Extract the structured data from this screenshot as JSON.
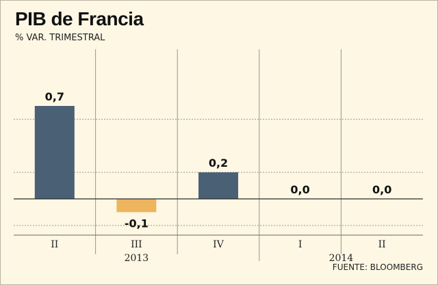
{
  "title": "PIB de Francia",
  "subtitle": "% VAR. TRIMESTRAL",
  "source": "FUENTE: BLOOMBERG",
  "colors": {
    "positive": "#4a6075",
    "negative": "#eeb55f",
    "background": "#fdf7e4"
  },
  "chart_data": {
    "type": "bar",
    "title": "PIB de Francia",
    "subtitle": "% VAR. TRIMESTRAL",
    "categories": [
      "II",
      "III",
      "IV",
      "I",
      "II"
    ],
    "years": [
      {
        "label": "2013",
        "span": [
          0,
          2
        ]
      },
      {
        "label": "2014",
        "span": [
          3,
          4
        ]
      }
    ],
    "values": [
      0.7,
      -0.1,
      0.2,
      0.0,
      0.0
    ],
    "value_labels": [
      "0,7",
      "-0,1",
      "0,2",
      "0,0",
      "0,0"
    ],
    "ylim": [
      -0.2,
      0.9
    ],
    "grid": true,
    "legend": "none"
  }
}
